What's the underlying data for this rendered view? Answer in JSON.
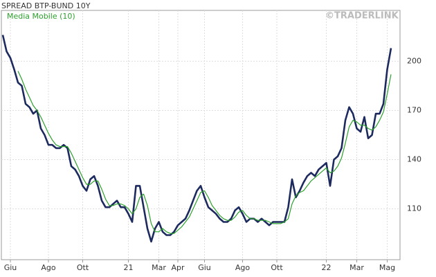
{
  "chart_data": {
    "type": "line",
    "watermark": "©TRADERLINK",
    "categories": [
      null,
      null,
      "Giu",
      null,
      null,
      null,
      null,
      null,
      null,
      null,
      null,
      null,
      "Ago",
      null,
      null,
      null,
      null,
      null,
      null,
      null,
      null,
      "Ott",
      null,
      null,
      null,
      null,
      null,
      null,
      null,
      null,
      null,
      null,
      null,
      "21",
      null,
      null,
      null,
      null,
      null,
      null,
      null,
      "Mar",
      null,
      null,
      null,
      null,
      "Apr",
      null,
      null,
      null,
      null,
      null,
      null,
      "Giu",
      null,
      null,
      null,
      null,
      null,
      null,
      null,
      null,
      null,
      "Ago",
      null,
      null,
      null,
      null,
      null,
      null,
      null,
      null,
      "Ott",
      null,
      null,
      null,
      null,
      null,
      null,
      null,
      null,
      null,
      null,
      null,
      null,
      "22",
      null,
      null,
      null,
      null,
      null,
      null,
      null,
      "Mar",
      null,
      null,
      null,
      null,
      null,
      null,
      null,
      "Mag",
      null
    ],
    "series": [
      {
        "name": "SPREAD BTP-BUND 10Y",
        "color": "#1c2a5e",
        "values": [
          216,
          206,
          202,
          195,
          187,
          185,
          174,
          172,
          168,
          170,
          159,
          155,
          149,
          149,
          147,
          147,
          149,
          147,
          136,
          134,
          130,
          124,
          121,
          128,
          130,
          124,
          115,
          111,
          111,
          113,
          115,
          111,
          111,
          107,
          102,
          124,
          124,
          111,
          98,
          90,
          98,
          102,
          96,
          94,
          94,
          96,
          100,
          102,
          104,
          109,
          115,
          121,
          124,
          117,
          111,
          109,
          107,
          104,
          102,
          102,
          104,
          109,
          111,
          107,
          102,
          104,
          104,
          102,
          104,
          102,
          100,
          102,
          102,
          102,
          102,
          111,
          128,
          117,
          121,
          126,
          130,
          132,
          130,
          134,
          136,
          138,
          124,
          140,
          142,
          147,
          164,
          172,
          168,
          159,
          157,
          166,
          153,
          155,
          168,
          168,
          174,
          195,
          208
        ]
      },
      {
        "name": "Media Mobile  (10)",
        "color": "#2ca02c",
        "values": [
          null,
          null,
          null,
          null,
          194,
          189,
          183,
          178,
          173,
          170,
          166,
          161,
          156,
          152,
          149,
          148,
          148,
          148,
          144,
          139,
          134,
          129,
          125,
          125,
          127,
          127,
          122,
          116,
          112,
          112,
          113,
          113,
          112,
          110,
          107,
          110,
          117,
          119,
          112,
          101,
          96,
          96,
          98,
          96,
          95,
          95,
          97,
          99,
          102,
          105,
          110,
          115,
          120,
          121,
          117,
          112,
          109,
          106,
          104,
          103,
          103,
          105,
          108,
          109,
          106,
          104,
          104,
          103,
          103,
          103,
          102,
          101,
          101,
          101,
          102,
          104,
          113,
          118,
          120,
          121,
          124,
          127,
          129,
          131,
          133,
          135,
          132,
          133,
          136,
          141,
          150,
          160,
          164,
          163,
          161,
          161,
          159,
          158,
          160,
          164,
          169,
          180,
          192
        ]
      }
    ],
    "ylim": [
      79,
      231
    ],
    "yticks": [
      110,
      140,
      170,
      200
    ],
    "grid": true
  }
}
